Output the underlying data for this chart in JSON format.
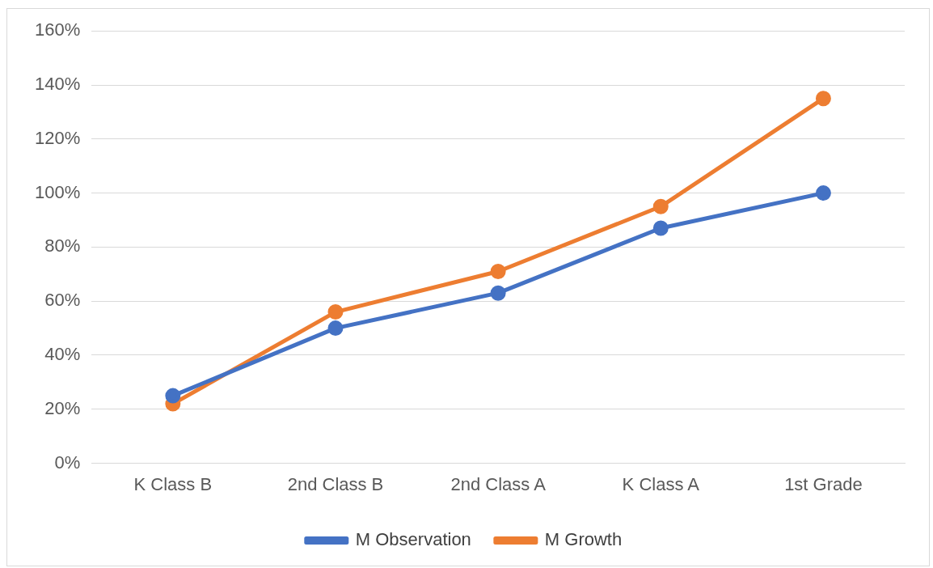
{
  "chart_data": {
    "type": "line",
    "categories": [
      "K Class B",
      "2nd Class B",
      "2nd Class A",
      "K Class A",
      "1st Grade"
    ],
    "series": [
      {
        "name": "M Observation",
        "color": "#4472c4",
        "values": [
          25,
          50,
          63,
          87,
          100
        ]
      },
      {
        "name": "M Growth",
        "color": "#ed7d31",
        "values": [
          22,
          56,
          71,
          95,
          135
        ]
      }
    ],
    "ylim": [
      0,
      160
    ],
    "yticks": [
      {
        "value": 0,
        "label": "0%"
      },
      {
        "value": 20,
        "label": "20%"
      },
      {
        "value": 40,
        "label": "40%"
      },
      {
        "value": 60,
        "label": "60%"
      },
      {
        "value": 80,
        "label": "80%"
      },
      {
        "value": 100,
        "label": "100%"
      },
      {
        "value": 120,
        "label": "120%"
      },
      {
        "value": 140,
        "label": "140%"
      },
      {
        "value": 160,
        "label": "160%"
      }
    ],
    "grid": "y",
    "legend": "bottom",
    "marker": "circle",
    "line_style": "solid"
  }
}
